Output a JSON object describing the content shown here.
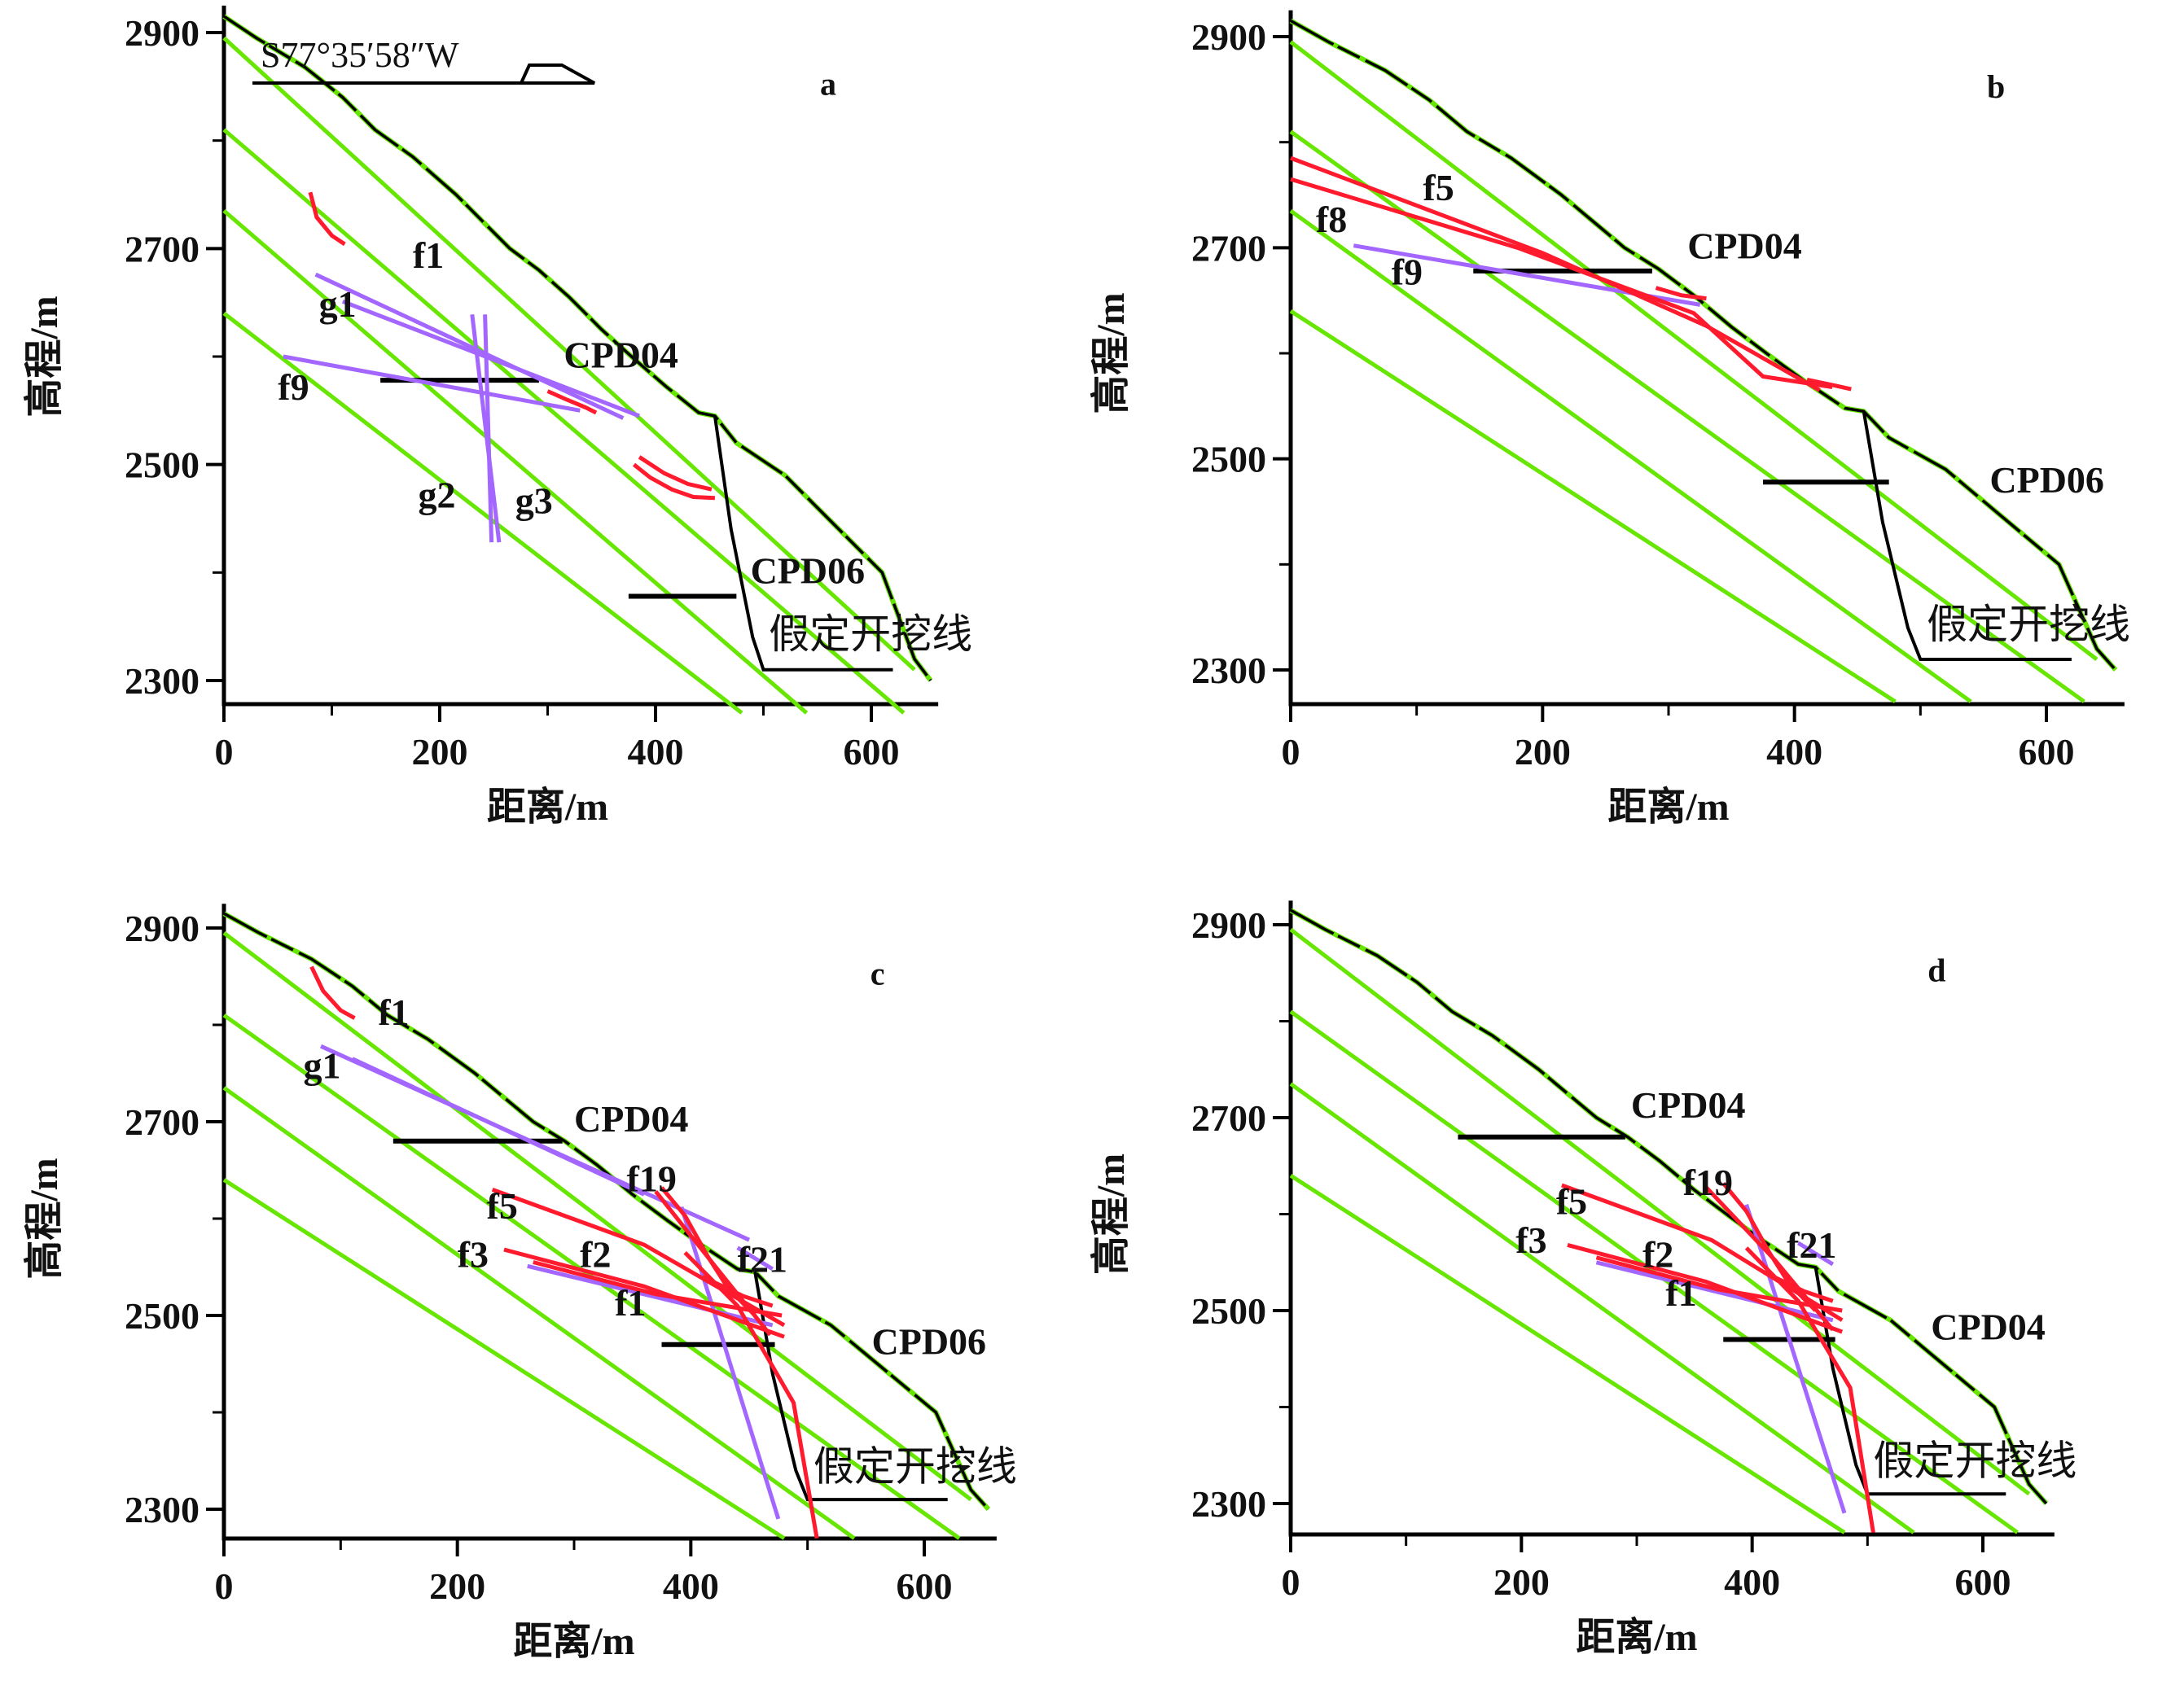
{
  "colors": {
    "surface": "#000000",
    "layer": "#66e600",
    "structure_purple": "#a366ff",
    "fault_red": "#ff1a2e",
    "adit": "#000000"
  },
  "axes": {
    "xlabel": "距离/m",
    "ylabel": "高程/m",
    "x_ticks": [
      "0",
      "200",
      "400",
      "600"
    ],
    "y_ticks": [
      "2900",
      "2700",
      "2500",
      "2300"
    ]
  },
  "bearing": "S77°35′58″W",
  "panels": [
    {
      "id": "a",
      "letter": "a",
      "labels": [
        {
          "text": "f1",
          "x": 175,
          "y": 2682
        },
        {
          "text": "g1",
          "x": 88,
          "y": 2637
        },
        {
          "text": "f9",
          "x": 50,
          "y": 2560
        },
        {
          "text": "g2",
          "x": 180,
          "y": 2460
        },
        {
          "text": "g3",
          "x": 270,
          "y": 2455
        },
        {
          "text": "CPD04",
          "x": 315,
          "y": 2590
        },
        {
          "text": "CPD06",
          "x": 488,
          "y": 2390
        },
        {
          "text": "假定开挖线",
          "x": 505,
          "y": 2330,
          "cn": true
        }
      ],
      "adits": [
        {
          "x1": 145,
          "y1": 2578,
          "x2": 292,
          "y2": 2578
        },
        {
          "x1": 375,
          "y1": 2378,
          "x2": 475,
          "y2": 2378
        }
      ],
      "purple": [
        [
          [
            85,
            2676
          ],
          [
            370,
            2543
          ]
        ],
        [
          [
            110,
            2651
          ],
          [
            385,
            2545
          ]
        ],
        [
          [
            55,
            2600
          ],
          [
            330,
            2550
          ]
        ],
        [
          [
            230,
            2639
          ],
          [
            255,
            2428
          ]
        ],
        [
          [
            242,
            2639
          ],
          [
            248,
            2428
          ]
        ]
      ],
      "red": [
        [
          [
            80,
            2752
          ],
          [
            86,
            2729
          ],
          [
            100,
            2712
          ],
          [
            112,
            2704
          ]
        ],
        [
          [
            300,
            2568
          ],
          [
            318,
            2560
          ],
          [
            335,
            2553
          ],
          [
            345,
            2548
          ]
        ],
        [
          [
            380,
            2500
          ],
          [
            395,
            2488
          ],
          [
            415,
            2477
          ],
          [
            435,
            2470
          ],
          [
            455,
            2469
          ]
        ],
        [
          [
            385,
            2507
          ],
          [
            408,
            2492
          ],
          [
            430,
            2482
          ],
          [
            452,
            2477
          ]
        ]
      ]
    },
    {
      "id": "b",
      "letter": "b",
      "labels": [
        {
          "text": "f5",
          "x": 105,
          "y": 2745
        },
        {
          "text": "f8",
          "x": 20,
          "y": 2715
        },
        {
          "text": "f9",
          "x": 80,
          "y": 2665
        },
        {
          "text": "CPD04",
          "x": 315,
          "y": 2690
        },
        {
          "text": "CPD06",
          "x": 555,
          "y": 2468
        },
        {
          "text": "假定开挖线",
          "x": 505,
          "y": 2330,
          "cn": true
        }
      ],
      "adits": [
        {
          "x1": 145,
          "y1": 2678,
          "x2": 287,
          "y2": 2678
        },
        {
          "x1": 375,
          "y1": 2478,
          "x2": 475,
          "y2": 2478
        }
      ],
      "purple": [
        [
          [
            50,
            2702
          ],
          [
            325,
            2646
          ]
        ]
      ],
      "red": [
        [
          [
            0,
            2785
          ],
          [
            200,
            2695
          ],
          [
            330,
            2626
          ],
          [
            420,
            2565
          ]
        ],
        [
          [
            0,
            2765
          ],
          [
            180,
            2700
          ],
          [
            320,
            2638
          ],
          [
            375,
            2578
          ],
          [
            430,
            2568
          ]
        ],
        [
          [
            290,
            2662
          ],
          [
            310,
            2655
          ],
          [
            330,
            2652
          ]
        ],
        [
          [
            410,
            2575
          ],
          [
            430,
            2570
          ],
          [
            445,
            2566
          ]
        ]
      ]
    },
    {
      "id": "c",
      "letter": "c",
      "labels": [
        {
          "text": "f1",
          "x": 132,
          "y": 2800
        },
        {
          "text": "g1",
          "x": 68,
          "y": 2745
        },
        {
          "text": "CPD04",
          "x": 300,
          "y": 2690
        },
        {
          "text": "f19",
          "x": 345,
          "y": 2628
        },
        {
          "text": "f5",
          "x": 225,
          "y": 2600
        },
        {
          "text": "f2",
          "x": 305,
          "y": 2550
        },
        {
          "text": "f3",
          "x": 200,
          "y": 2550
        },
        {
          "text": "f21",
          "x": 440,
          "y": 2545
        },
        {
          "text": "f1",
          "x": 335,
          "y": 2500
        },
        {
          "text": "CPD06",
          "x": 555,
          "y": 2460
        },
        {
          "text": "假定开挖线",
          "x": 505,
          "y": 2330,
          "cn": true
        }
      ],
      "adits": [
        {
          "x1": 145,
          "y1": 2680,
          "x2": 290,
          "y2": 2680
        },
        {
          "x1": 375,
          "y1": 2470,
          "x2": 472,
          "y2": 2470
        }
      ],
      "purple": [
        [
          [
            83,
            2778
          ],
          [
            450,
            2578
          ]
        ],
        [
          [
            110,
            2765
          ],
          [
            360,
            2625
          ]
        ],
        [
          [
            260,
            2551
          ],
          [
            470,
            2490
          ]
        ],
        [
          [
            392,
            2612
          ],
          [
            475,
            2290
          ]
        ],
        [
          [
            440,
            2570
          ],
          [
            470,
            2548
          ]
        ]
      ],
      "red": [
        [
          [
            75,
            2860
          ],
          [
            85,
            2835
          ],
          [
            100,
            2815
          ],
          [
            112,
            2807
          ]
        ],
        [
          [
            230,
            2630
          ],
          [
            360,
            2573
          ],
          [
            480,
            2490
          ]
        ],
        [
          [
            240,
            2568
          ],
          [
            360,
            2530
          ],
          [
            480,
            2478
          ]
        ],
        [
          [
            265,
            2555
          ],
          [
            370,
            2522
          ],
          [
            478,
            2500
          ]
        ],
        [
          [
            375,
            2632
          ],
          [
            395,
            2603
          ],
          [
            415,
            2560
          ],
          [
            432,
            2528
          ],
          [
            455,
            2500
          ]
        ],
        [
          [
            370,
            2628
          ],
          [
            420,
            2552
          ],
          [
            468,
            2480
          ]
        ],
        [
          [
            395,
            2565
          ],
          [
            440,
            2510
          ],
          [
            488,
            2410
          ],
          [
            508,
            2270
          ]
        ],
        [
          [
            410,
            2540
          ],
          [
            445,
            2520
          ],
          [
            470,
            2510
          ]
        ]
      ]
    },
    {
      "id": "d",
      "letter": "d",
      "labels": [
        {
          "text": "CPD04",
          "x": 295,
          "y": 2700
        },
        {
          "text": "f19",
          "x": 340,
          "y": 2620
        },
        {
          "text": "f5",
          "x": 230,
          "y": 2600
        },
        {
          "text": "f21",
          "x": 430,
          "y": 2555
        },
        {
          "text": "f3",
          "x": 195,
          "y": 2560
        },
        {
          "text": "f2",
          "x": 305,
          "y": 2545
        },
        {
          "text": "f1",
          "x": 325,
          "y": 2505
        },
        {
          "text": "CPD04",
          "x": 555,
          "y": 2470
        },
        {
          "text": "假定开挖线",
          "x": 505,
          "y": 2330,
          "cn": true
        }
      ],
      "adits": [
        {
          "x1": 145,
          "y1": 2680,
          "x2": 290,
          "y2": 2680
        },
        {
          "x1": 375,
          "y1": 2470,
          "x2": 472,
          "y2": 2470
        }
      ],
      "purple": [
        [
          [
            265,
            2550
          ],
          [
            470,
            2490
          ]
        ],
        [
          [
            395,
            2610
          ],
          [
            480,
            2290
          ]
        ],
        [
          [
            440,
            2570
          ],
          [
            470,
            2548
          ]
        ]
      ],
      "red": [
        [
          [
            235,
            2630
          ],
          [
            365,
            2573
          ],
          [
            478,
            2490
          ]
        ],
        [
          [
            240,
            2568
          ],
          [
            360,
            2530
          ],
          [
            478,
            2478
          ]
        ],
        [
          [
            265,
            2555
          ],
          [
            370,
            2522
          ],
          [
            478,
            2500
          ]
        ],
        [
          [
            360,
            2628
          ],
          [
            420,
            2552
          ],
          [
            470,
            2480
          ]
        ],
        [
          [
            375,
            2632
          ],
          [
            395,
            2603
          ],
          [
            415,
            2560
          ],
          [
            432,
            2528
          ],
          [
            455,
            2500
          ]
        ],
        [
          [
            395,
            2565
          ],
          [
            440,
            2510
          ],
          [
            485,
            2420
          ],
          [
            505,
            2270
          ]
        ],
        [
          [
            410,
            2540
          ],
          [
            445,
            2520
          ],
          [
            470,
            2510
          ]
        ]
      ]
    }
  ]
}
